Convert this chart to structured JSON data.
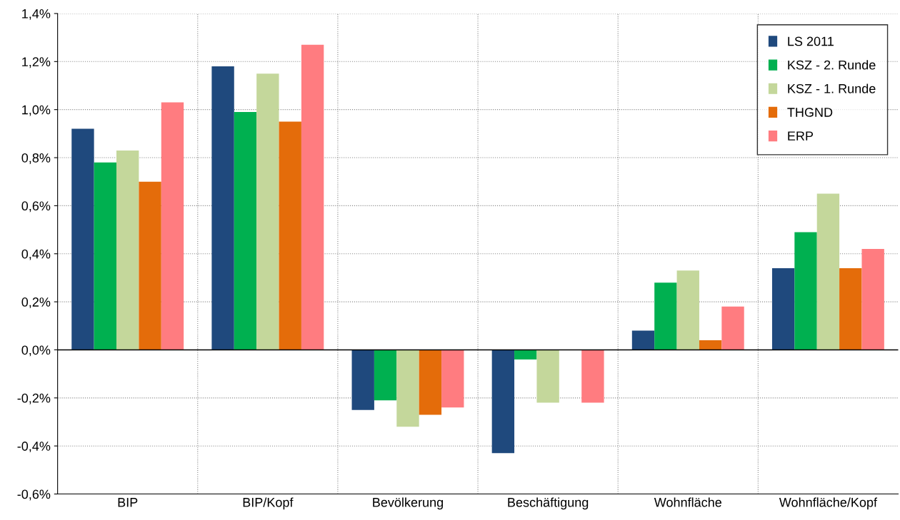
{
  "chart_data": {
    "type": "bar",
    "categories": [
      "BIP",
      "BIP/Kopf",
      "Bevölkerung",
      "Beschäftigung",
      "Wohnfläche",
      "Wohnfläche/Kopf"
    ],
    "series": [
      {
        "name": "LS 2011",
        "color": "#1f497d",
        "values": [
          0.92,
          1.18,
          -0.25,
          -0.43,
          0.08,
          0.34
        ]
      },
      {
        "name": "KSZ - 2. Runde",
        "color": "#00b050",
        "values": [
          0.78,
          0.99,
          -0.21,
          -0.04,
          0.28,
          0.49
        ]
      },
      {
        "name": "KSZ - 1. Runde",
        "color": "#c4d79b",
        "values": [
          0.83,
          1.15,
          -0.32,
          -0.22,
          0.33,
          0.65
        ]
      },
      {
        "name": "THGND",
        "color": "#e46c0a",
        "values": [
          0.7,
          0.95,
          -0.27,
          null,
          0.04,
          0.34
        ]
      },
      {
        "name": "ERP",
        "color": "#ff7c80",
        "values": [
          1.03,
          1.27,
          -0.24,
          -0.22,
          0.18,
          0.42
        ]
      }
    ],
    "ylim": [
      -0.6,
      1.4
    ],
    "yticks": [
      {
        "value": -0.6,
        "label": "-0,6%"
      },
      {
        "value": -0.4,
        "label": "-0,4%"
      },
      {
        "value": -0.2,
        "label": "-0,2%"
      },
      {
        "value": 0,
        "label": "0,0%"
      },
      {
        "value": 0.2,
        "label": "0,2%"
      },
      {
        "value": 0.4,
        "label": "0,4%"
      },
      {
        "value": 0.6,
        "label": "0,6%"
      },
      {
        "value": 0.8,
        "label": "0,8%"
      },
      {
        "value": 1.0,
        "label": "1,0%"
      },
      {
        "value": 1.2,
        "label": "1,2%"
      },
      {
        "value": 1.4,
        "label": "1,4%"
      }
    ],
    "grid": true,
    "legend": "top right"
  }
}
